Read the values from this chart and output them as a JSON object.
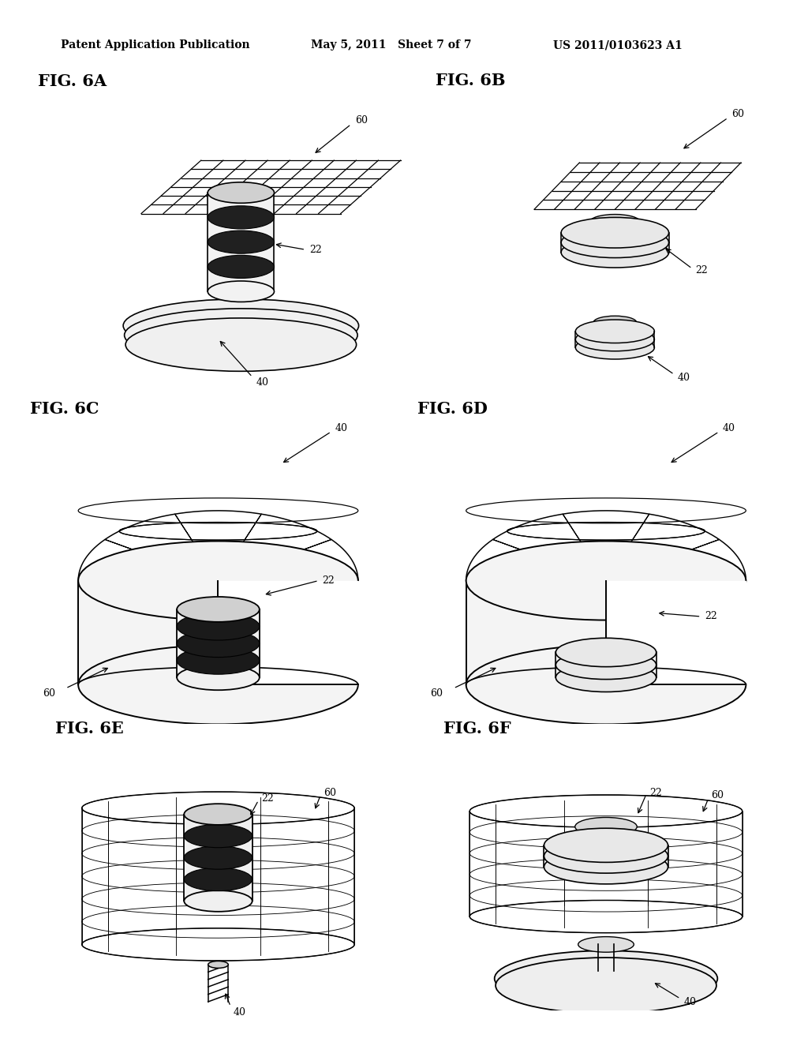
{
  "background_color": "#ffffff",
  "header_left": "Patent Application Publication",
  "header_mid": "May 5, 2011   Sheet 7 of 7",
  "header_right": "US 2011/0103623 A1",
  "header_fontsize": 10,
  "fig_label_fontsize": 15,
  "ref_fontsize": 9,
  "line_color": "#000000",
  "panels": [
    {
      "label": "FIG. 6A",
      "col": 0,
      "row": 0
    },
    {
      "label": "FIG. 6B",
      "col": 1,
      "row": 0
    },
    {
      "label": "FIG. 6C",
      "col": 0,
      "row": 1
    },
    {
      "label": "FIG. 6D",
      "col": 1,
      "row": 1
    },
    {
      "label": "FIG. 6E",
      "col": 0,
      "row": 2
    },
    {
      "label": "FIG. 6F",
      "col": 1,
      "row": 2
    }
  ]
}
